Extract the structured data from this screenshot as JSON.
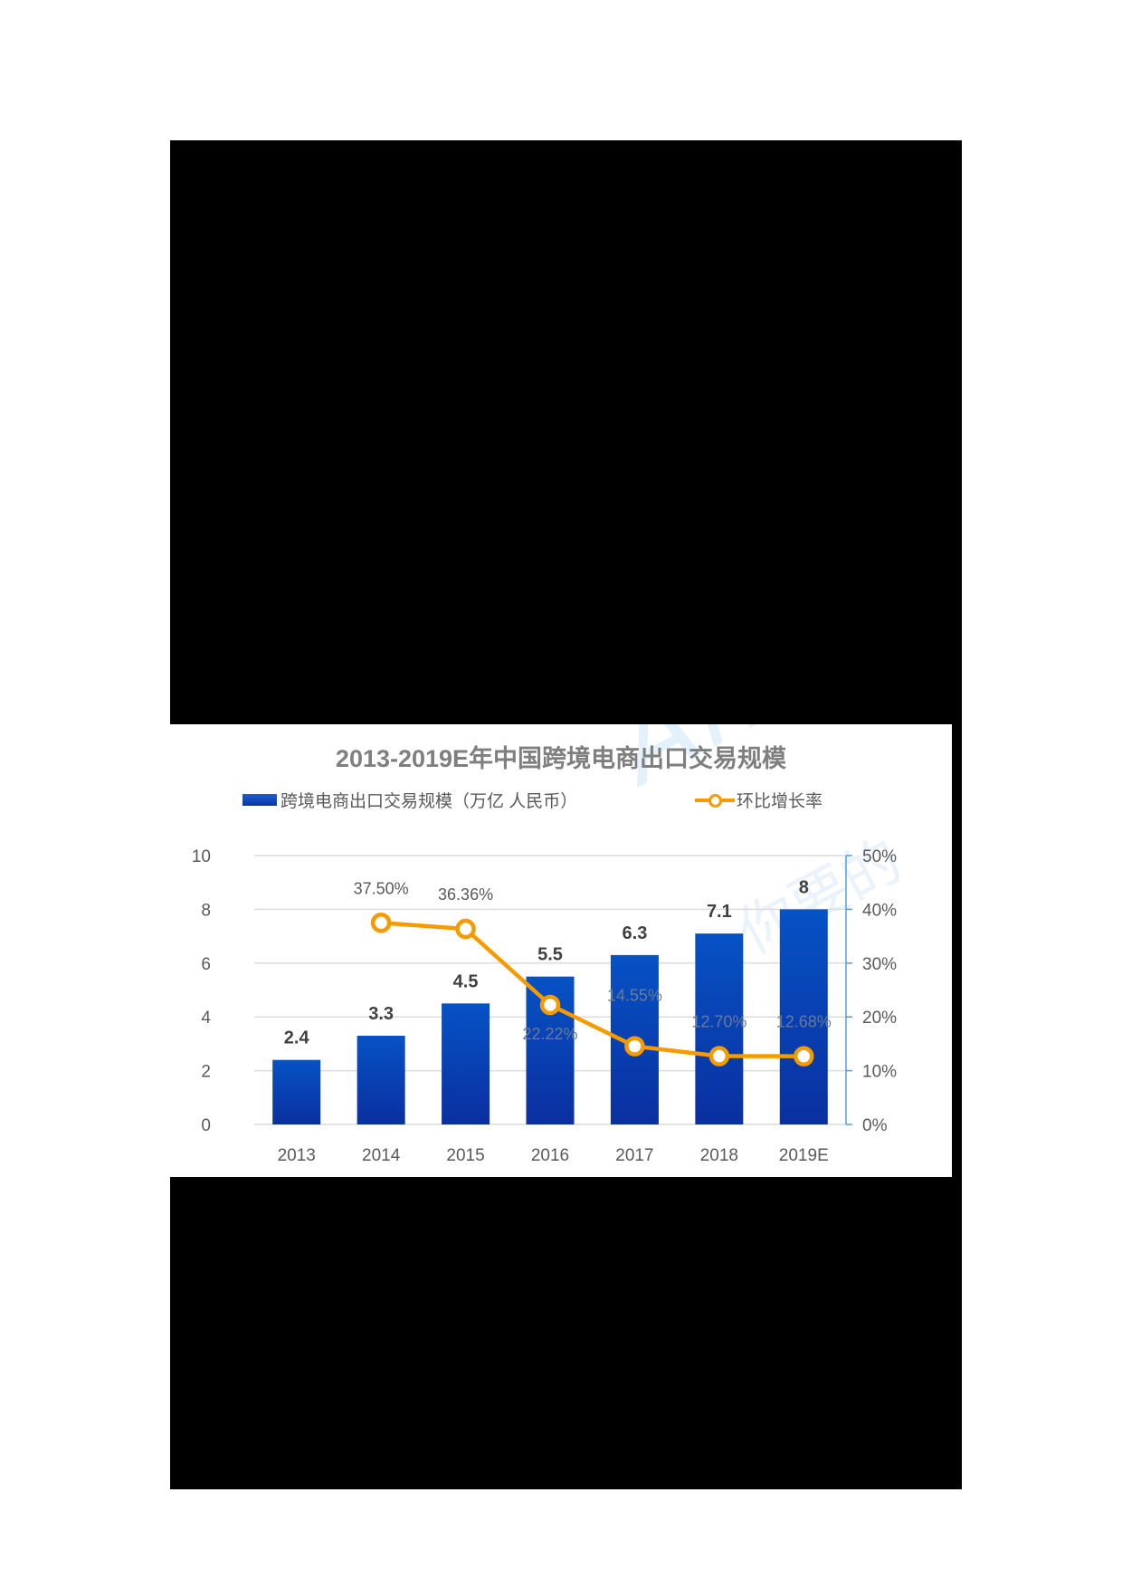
{
  "chart_data": {
    "type": "bar+line",
    "title": "2013-2019E年中国跨境电商出口交易规模",
    "categories": [
      "2013",
      "2014",
      "2015",
      "2016",
      "2017",
      "2018",
      "2019E"
    ],
    "series": [
      {
        "name": "跨境电商出口交易规模（万亿 人民币）",
        "type": "bar",
        "axis": "left",
        "values": [
          2.4,
          3.3,
          4.5,
          5.5,
          6.3,
          7.1,
          8
        ],
        "labels": [
          "2.4",
          "3.3",
          "4.5",
          "5.5",
          "6.3",
          "7.1",
          "8"
        ],
        "color": "#0a3fb0"
      },
      {
        "name": "环比增长率",
        "type": "line",
        "axis": "right",
        "values": [
          null,
          37.5,
          36.36,
          22.22,
          14.55,
          12.7,
          12.68
        ],
        "labels": [
          "",
          "37.50%",
          "36.36%",
          "22.22%",
          "14.55%",
          "12.70%",
          "12.68%"
        ],
        "color": "#f59b00"
      }
    ],
    "y_left": {
      "ylim": [
        0,
        10
      ],
      "ticks": [
        "0",
        "2",
        "4",
        "6",
        "8",
        "10"
      ]
    },
    "y_right": {
      "ylim": [
        0,
        50
      ],
      "ticks": [
        "0%",
        "10%",
        "20%",
        "30%",
        "40%",
        "50%"
      ]
    },
    "xlabel": "",
    "ylabel": "",
    "grid": true,
    "legend_position": "top"
  },
  "legend": {
    "bars_label": "跨境电商出口交易规模（万亿 人民币）",
    "line_label": "环比增长率"
  },
  "watermark": {
    "text_en": "Analysys",
    "text_cn": "你要的"
  }
}
